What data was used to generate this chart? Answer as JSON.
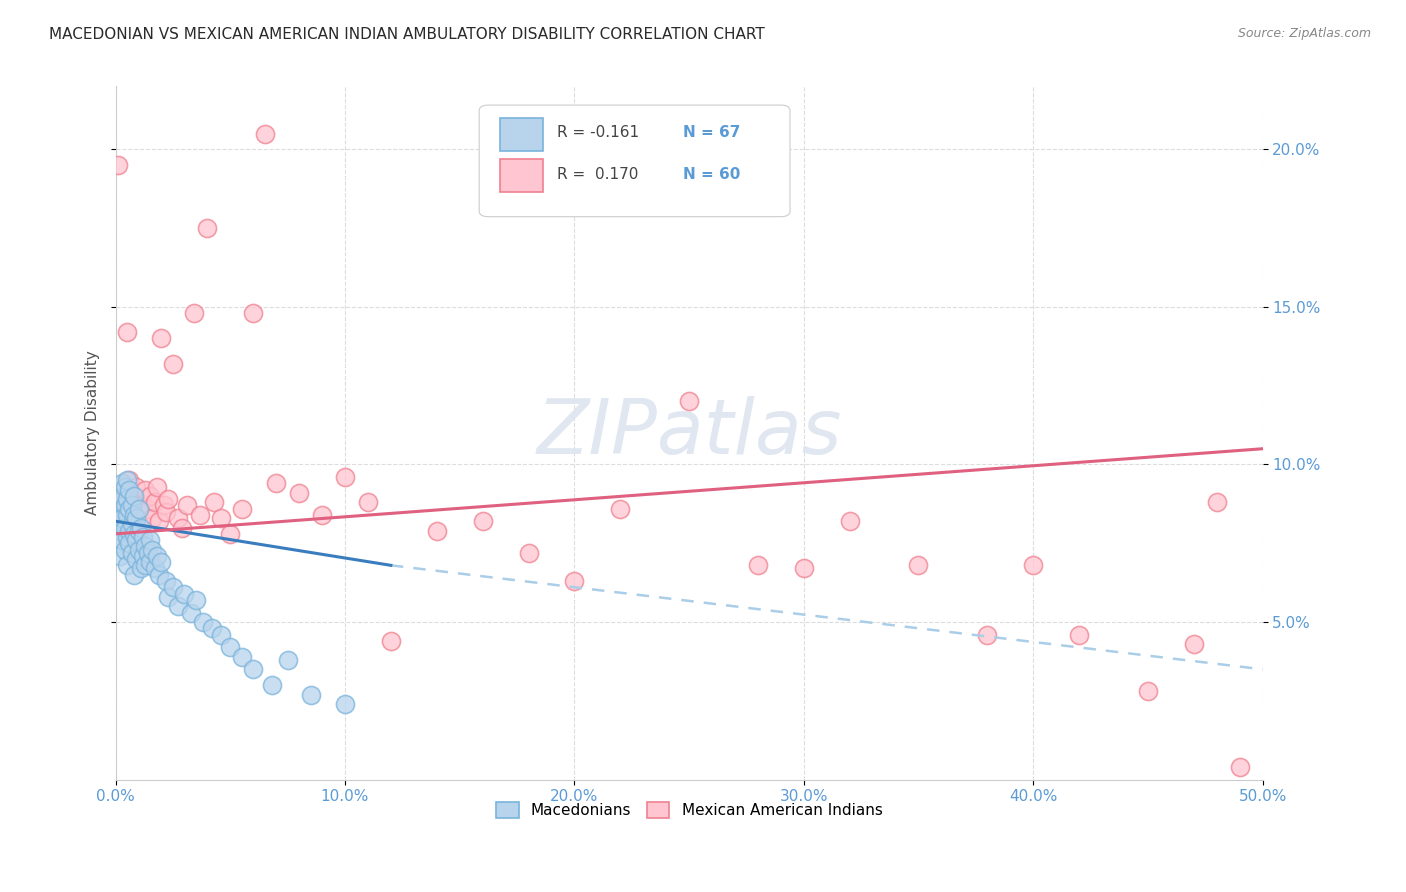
{
  "title": "MACEDONIAN VS MEXICAN AMERICAN INDIAN AMBULATORY DISABILITY CORRELATION CHART",
  "source": "Source: ZipAtlas.com",
  "ylabel": "Ambulatory Disability",
  "xlim": [
    0.0,
    0.5
  ],
  "ylim": [
    0.0,
    0.22
  ],
  "xtick_vals": [
    0.0,
    0.1,
    0.2,
    0.3,
    0.4,
    0.5
  ],
  "xtick_labels": [
    "0.0%",
    "10.0%",
    "20.0%",
    "30.0%",
    "40.0%",
    "50.0%"
  ],
  "yticks_right": [
    0.05,
    0.1,
    0.15,
    0.2
  ],
  "ytick_labels_right": [
    "5.0%",
    "10.0%",
    "15.0%",
    "20.0%"
  ],
  "macedonian_color_face": "#b8d4ed",
  "macedonian_color_edge": "#7ab4db",
  "mexican_color_face": "#ffc5d0",
  "mexican_color_edge": "#f08090",
  "trend_mac_solid_color": "#3a7dbf",
  "trend_mac_dash_color": "#aacde8",
  "trend_mex_color": "#e06080",
  "watermark": "ZIPatlas",
  "watermark_color": "#dde5f0",
  "background_color": "#ffffff",
  "grid_color": "#dddddd",
  "title_fontsize": 11,
  "axis_tick_color": "#5b9bd5",
  "ylabel_color": "#555555",
  "mac_trend_x0": 0.0,
  "mac_trend_y0": 0.082,
  "mac_trend_x1": 0.12,
  "mac_trend_y1": 0.068,
  "mac_trend_xdash1": 0.5,
  "mac_trend_ydash1": 0.035,
  "mex_trend_x0": 0.0,
  "mex_trend_y0": 0.078,
  "mex_trend_x1": 0.5,
  "mex_trend_y1": 0.105
}
